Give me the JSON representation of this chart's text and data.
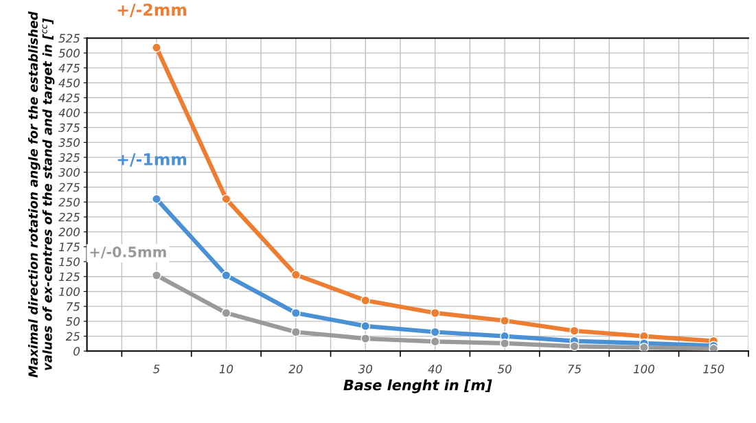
{
  "chart_data": {
    "type": "line",
    "xlabel": "Base lenght in [m]",
    "ylabel": "Maximal direction rotation angle for the established\nvalues of ex-centres of the stand and target in [$^{cc}$]",
    "categories": [
      "5",
      "10",
      "20",
      "30",
      "40",
      "50",
      "75",
      "100",
      "150"
    ],
    "ylim": [
      0,
      525
    ],
    "yticks": [
      0,
      25,
      50,
      75,
      100,
      125,
      150,
      175,
      200,
      225,
      250,
      275,
      300,
      325,
      350,
      375,
      400,
      425,
      450,
      475,
      500,
      525
    ],
    "grid": true,
    "marker": "circle",
    "line_style": "solid",
    "series": [
      {
        "name": "+/-2mm",
        "color": "#ed7d31",
        "values": [
          509,
          255,
          128,
          85,
          64,
          51,
          34,
          25,
          17
        ]
      },
      {
        "name": "+/-1mm",
        "color": "#4a90d4",
        "values": [
          255,
          127,
          64,
          42,
          32,
          25,
          17,
          13,
          9
        ]
      },
      {
        "name": "+/-0.5mm",
        "color": "#9a9a9a",
        "values": [
          127,
          64,
          32,
          21,
          16,
          13,
          8,
          6,
          4
        ]
      }
    ]
  }
}
